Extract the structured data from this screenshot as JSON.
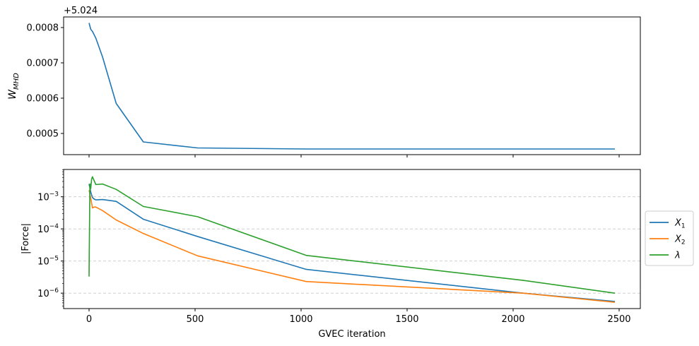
{
  "chart_data": [
    {
      "type": "line",
      "offset_label": "+5.024",
      "ylabel": "W_MHD",
      "ylabel_main": "W",
      "ylabel_sub": "MHD",
      "xlim": [
        -120,
        2600
      ],
      "ylim": [
        0.00044,
        0.00083
      ],
      "yscale": "linear",
      "xticks": [
        0,
        500,
        1000,
        1500,
        2000,
        2500
      ],
      "yticks": [
        0.0005,
        0.0006,
        0.0007,
        0.0008
      ],
      "ytick_labels": [
        "0.0005",
        "0.0006",
        "0.0007",
        "0.0008"
      ],
      "grid": false,
      "series": [
        {
          "color": "#1f77b4",
          "x": [
            0,
            8,
            16,
            32,
            64,
            128,
            256,
            512,
            1024,
            2048,
            2480
          ],
          "y": [
            0.000813,
            0.000795,
            0.000789,
            0.00077,
            0.000716,
            0.000585,
            0.000476,
            0.000459,
            0.000456,
            0.000456,
            0.000456
          ]
        }
      ]
    },
    {
      "type": "line",
      "xlabel": "GVEC iteration",
      "ylabel": "|Force|",
      "xlim": [
        -120,
        2600
      ],
      "ylim_log10": [
        -6.48,
        -2.15
      ],
      "yscale": "log",
      "xticks": [
        0,
        500,
        1000,
        1500,
        2000,
        2500
      ],
      "xtick_labels": [
        "0",
        "500",
        "1000",
        "1500",
        "2000",
        "2500"
      ],
      "ytick_exponents": [
        -6,
        -5,
        -4,
        -3
      ],
      "ytick_base": "10",
      "grid": "y-dashed",
      "legend_position": "outside-right",
      "series": [
        {
          "name_main": "X",
          "name_sub": "1",
          "color": "#1f77b4",
          "x": [
            0,
            4,
            8,
            16,
            24,
            32,
            64,
            128,
            256,
            512,
            1024,
            2048,
            2480
          ],
          "y": [
            0.0025,
            0.0019,
            0.0014,
            0.00095,
            0.00085,
            0.0008,
            0.00082,
            0.00072,
            0.0002,
            5.8e-05,
            5.5e-06,
            1e-06,
            5.5e-07
          ]
        },
        {
          "name_main": "X",
          "name_sub": "2",
          "color": "#ff7f0e",
          "x": [
            0,
            8,
            16,
            24,
            32,
            64,
            128,
            256,
            512,
            1024,
            2048,
            2480
          ],
          "y": [
            0.0016,
            0.0009,
            0.00045,
            0.00048,
            0.00048,
            0.00037,
            0.00019,
            7.2e-05,
            1.45e-05,
            2.3e-06,
            1e-06,
            5.2e-07
          ]
        },
        {
          "name_main": "λ",
          "name_sub": "",
          "color": "#2ca02c",
          "x": [
            0,
            2,
            4,
            8,
            12,
            16,
            32,
            64,
            128,
            256,
            512,
            1024,
            2048,
            2480
          ],
          "y": [
            3.3e-06,
            0.0001,
            0.0025,
            0.0018,
            0.0035,
            0.0042,
            0.0024,
            0.0025,
            0.0017,
            0.0005,
            0.00024,
            1.5e-05,
            2.5e-06,
            1e-06
          ]
        }
      ]
    }
  ]
}
